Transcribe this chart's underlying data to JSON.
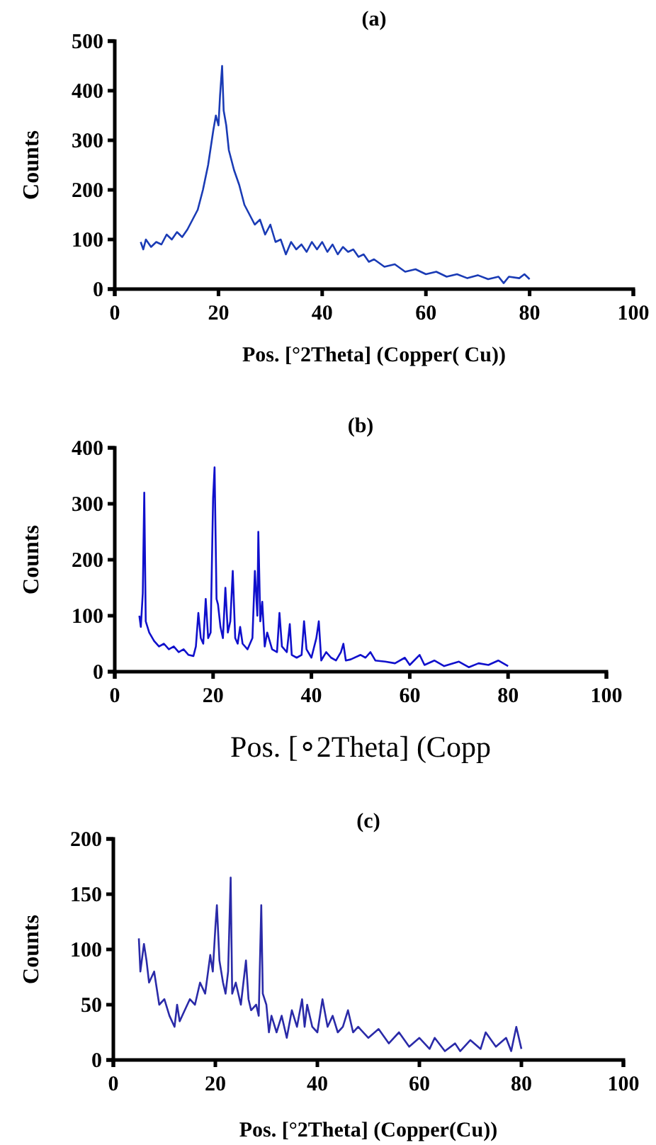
{
  "chart_data": [
    {
      "type": "line",
      "title": "(a)",
      "xlabel": "Pos. [°2Theta] (Copper( Cu))",
      "ylabel": "Counts",
      "xlim": [
        0,
        100
      ],
      "xticks": [
        0,
        20,
        40,
        60,
        80,
        100
      ],
      "ylim": [
        0,
        500
      ],
      "yticks": [
        0,
        100,
        200,
        300,
        400,
        500
      ],
      "grid": false,
      "marker": "none",
      "line_style": "solid",
      "series": [
        {
          "color": "#1a3bb5",
          "x": [
            5,
            5.5,
            6,
            7,
            8,
            9,
            10,
            11,
            12,
            13,
            14,
            15,
            16,
            17,
            18,
            19,
            19.5,
            20,
            20.3,
            20.7,
            21,
            21.5,
            22,
            23,
            24,
            25,
            26,
            27,
            28,
            29,
            30,
            31,
            32,
            33,
            34,
            35,
            36,
            37,
            38,
            39,
            40,
            41,
            42,
            43,
            44,
            45,
            46,
            47,
            48,
            49,
            50,
            52,
            54,
            56,
            58,
            60,
            62,
            64,
            66,
            68,
            70,
            72,
            74,
            75,
            76,
            78,
            79,
            80
          ],
          "values": [
            95,
            80,
            100,
            85,
            95,
            90,
            110,
            100,
            115,
            105,
            120,
            140,
            160,
            200,
            250,
            320,
            350,
            330,
            390,
            450,
            360,
            330,
            280,
            240,
            210,
            170,
            150,
            130,
            140,
            110,
            130,
            95,
            100,
            70,
            95,
            80,
            90,
            75,
            95,
            80,
            95,
            75,
            90,
            70,
            85,
            75,
            80,
            65,
            70,
            55,
            60,
            45,
            50,
            35,
            40,
            30,
            35,
            25,
            30,
            22,
            28,
            20,
            25,
            12,
            25,
            22,
            30,
            20
          ]
        }
      ]
    },
    {
      "type": "line",
      "title": "(b)",
      "xlabel": "Pos. [∘2Theta] (Copp",
      "ylabel": "Counts",
      "xlim": [
        0,
        100
      ],
      "xticks": [
        0,
        20,
        40,
        60,
        80,
        100
      ],
      "ylim": [
        0,
        400
      ],
      "yticks": [
        0,
        100,
        200,
        300,
        400
      ],
      "grid": false,
      "marker": "none",
      "line_style": "solid",
      "series": [
        {
          "color": "#1010cc",
          "x": [
            5,
            5.3,
            5.7,
            6,
            6.3,
            7,
            8,
            9,
            10,
            11,
            12,
            13,
            14,
            15,
            16,
            16.5,
            17,
            17.5,
            18,
            18.5,
            19,
            19.5,
            20,
            20.3,
            20.7,
            21,
            21.5,
            22,
            22.5,
            23,
            23.5,
            24,
            24.5,
            25,
            25.5,
            26,
            27,
            28,
            28.5,
            29,
            29.2,
            29.6,
            30,
            30.5,
            31,
            32,
            33,
            33.5,
            34,
            35,
            35.6,
            36,
            37,
            38,
            38.5,
            39,
            40,
            41,
            41.5,
            42,
            43,
            44,
            45,
            46,
            46.5,
            47,
            48,
            50,
            51,
            52,
            53,
            55,
            57,
            59,
            60,
            62,
            63,
            65,
            67,
            70,
            72,
            74,
            76,
            78,
            80
          ],
          "values": [
            100,
            80,
            140,
            320,
            90,
            70,
            55,
            45,
            50,
            40,
            45,
            35,
            40,
            30,
            28,
            45,
            105,
            60,
            50,
            130,
            60,
            70,
            310,
            365,
            130,
            120,
            80,
            60,
            150,
            70,
            90,
            180,
            60,
            50,
            80,
            50,
            40,
            60,
            180,
            100,
            250,
            90,
            125,
            45,
            70,
            40,
            35,
            105,
            45,
            35,
            85,
            30,
            25,
            30,
            90,
            40,
            25,
            60,
            90,
            20,
            35,
            25,
            20,
            35,
            50,
            20,
            22,
            30,
            25,
            35,
            20,
            18,
            15,
            25,
            12,
            30,
            12,
            20,
            10,
            18,
            8,
            15,
            12,
            20,
            10
          ]
        }
      ]
    },
    {
      "type": "line",
      "title": "(c)",
      "xlabel": "Pos. [°2Theta] (Copper(Cu))",
      "ylabel": "Counts",
      "xlim": [
        0,
        100
      ],
      "xticks": [
        0,
        20,
        40,
        60,
        80,
        100
      ],
      "ylim": [
        0,
        200
      ],
      "yticks": [
        0,
        50,
        100,
        150,
        200
      ],
      "grid": false,
      "marker": "none",
      "line_style": "solid",
      "series": [
        {
          "color": "#2a2aa8",
          "x": [
            5,
            5.3,
            6,
            6.5,
            7,
            8,
            9,
            10,
            11,
            12,
            12.5,
            13,
            14,
            15,
            16,
            17,
            18,
            19,
            19.5,
            20,
            20.3,
            20.8,
            21.5,
            22,
            22.5,
            23,
            23.3,
            24,
            25,
            26,
            26.5,
            27,
            28,
            28.5,
            29,
            29.3,
            30,
            30.5,
            31,
            32,
            33,
            34,
            35,
            36,
            37,
            37.5,
            38,
            39,
            40,
            41,
            42,
            43,
            44,
            45,
            46,
            47,
            48,
            50,
            52,
            54,
            56,
            58,
            60,
            62,
            63,
            65,
            67,
            68,
            70,
            72,
            73,
            75,
            77,
            78,
            79,
            80
          ],
          "values": [
            110,
            80,
            105,
            90,
            70,
            80,
            50,
            55,
            40,
            30,
            50,
            35,
            45,
            55,
            50,
            70,
            60,
            95,
            80,
            120,
            140,
            90,
            70,
            60,
            80,
            165,
            60,
            70,
            50,
            90,
            55,
            45,
            50,
            40,
            140,
            60,
            50,
            25,
            40,
            25,
            40,
            20,
            45,
            30,
            55,
            30,
            50,
            30,
            25,
            55,
            30,
            40,
            25,
            30,
            45,
            25,
            30,
            20,
            28,
            15,
            25,
            12,
            20,
            10,
            20,
            8,
            15,
            8,
            18,
            10,
            25,
            12,
            20,
            8,
            30,
            10
          ]
        }
      ]
    }
  ]
}
